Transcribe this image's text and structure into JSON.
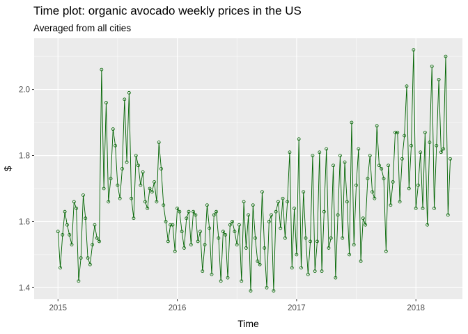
{
  "chart_data": {
    "type": "line",
    "title": "Time plot: organic avocado weekly prices in the US",
    "subtitle": "Averaged from all cities",
    "xlabel": "Time",
    "ylabel": "$",
    "xlim": [
      2014.8,
      2018.39
    ],
    "ylim": [
      1.365,
      2.155
    ],
    "x_ticks": [
      2015,
      2016,
      2017,
      2018
    ],
    "x_tick_labels": [
      "2015",
      "2016",
      "2017",
      "2018"
    ],
    "y_ticks": [
      1.4,
      1.6,
      1.8,
      2.0
    ],
    "y_tick_labels": [
      "1.4",
      "1.6",
      "1.8",
      "2.0"
    ],
    "grid": true,
    "legend": "none",
    "colors": {
      "line": "#006400",
      "points": "#006400",
      "panel": "#ebebeb",
      "grid": "#ffffff"
    },
    "series": [
      {
        "x_start": 2015.0,
        "x_step": 0.01923,
        "values": [
          1.57,
          1.46,
          1.56,
          1.63,
          1.59,
          1.56,
          1.53,
          1.66,
          1.64,
          1.42,
          1.49,
          1.68,
          1.61,
          1.49,
          1.47,
          1.53,
          1.59,
          1.55,
          1.54,
          2.06,
          1.7,
          1.96,
          1.66,
          1.73,
          1.88,
          1.83,
          1.71,
          1.67,
          1.76,
          1.97,
          1.78,
          1.99,
          1.67,
          1.61,
          1.8,
          1.77,
          1.71,
          1.75,
          1.66,
          1.64,
          1.7,
          1.69,
          1.72,
          1.66,
          1.84,
          1.76,
          1.65,
          1.6,
          1.54,
          1.59,
          1.59,
          1.51,
          1.64,
          1.63,
          1.57,
          1.52,
          1.61,
          1.63,
          1.53,
          1.63,
          1.62,
          1.54,
          1.57,
          1.45,
          1.53,
          1.65,
          1.58,
          1.44,
          1.62,
          1.63,
          1.55,
          1.42,
          1.57,
          1.56,
          1.43,
          1.59,
          1.6,
          1.57,
          1.53,
          1.59,
          1.42,
          1.66,
          1.52,
          1.62,
          1.39,
          1.65,
          1.55,
          1.48,
          1.47,
          1.69,
          1.52,
          1.4,
          1.6,
          1.62,
          1.39,
          1.63,
          1.66,
          1.58,
          1.67,
          1.55,
          1.66,
          1.81,
          1.46,
          1.64,
          1.5,
          1.85,
          1.46,
          1.69,
          1.55,
          1.44,
          1.54,
          1.8,
          1.45,
          1.54,
          1.81,
          1.45,
          1.63,
          1.82,
          1.52,
          1.55,
          1.77,
          1.43,
          1.62,
          1.8,
          1.55,
          1.78,
          1.66,
          1.5,
          1.9,
          1.53,
          1.71,
          1.82,
          1.48,
          1.61,
          1.59,
          1.73,
          1.8,
          1.69,
          1.67,
          1.89,
          1.77,
          1.76,
          1.73,
          1.51,
          1.77,
          1.65,
          1.72,
          1.87,
          1.87,
          1.66,
          1.79,
          1.86,
          2.01,
          1.7,
          1.83,
          2.12,
          1.64,
          1.71,
          1.81,
          1.64,
          1.87,
          1.59,
          1.84,
          2.07,
          1.64,
          1.83,
          2.03,
          1.81,
          1.82,
          2.1,
          1.62,
          1.79
        ]
      }
    ]
  }
}
